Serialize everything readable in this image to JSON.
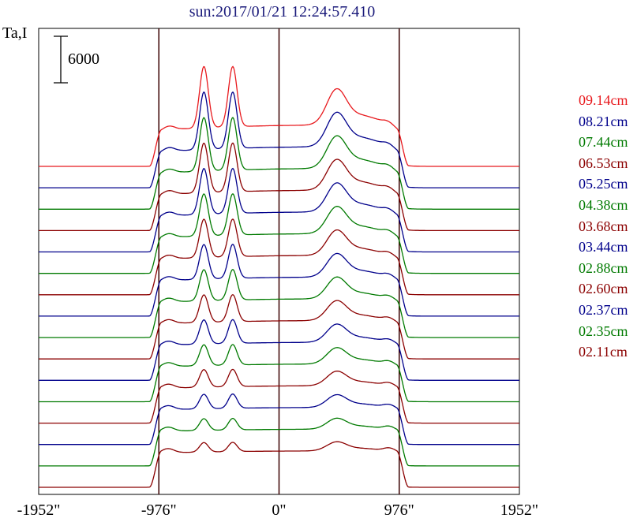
{
  "title": "sun:2017/01/21 12:24:57.410",
  "ylabel": "Ta,I",
  "scale_bar_label": "6000",
  "chart_data": {
    "type": "line",
    "title": "sun:2017/01/21 12:24:57.410",
    "ylabel": "Ta,I",
    "xlabel": "",
    "x_ticks": [
      "-1952\"",
      "-976\"",
      "0\"",
      "976\"",
      "1952\""
    ],
    "x_tick_values": [
      -1952,
      -976,
      0,
      976,
      1952
    ],
    "xlim": [
      -1952,
      1952
    ],
    "scale_bar": 6000,
    "vertical_lines": [
      -976,
      0,
      976
    ],
    "grid": false,
    "legend_position": "right",
    "series": [
      {
        "name": "09.14cm",
        "color": "#e8191d"
      },
      {
        "name": "08.21cm",
        "color": "#00008b"
      },
      {
        "name": "07.44cm",
        "color": "#007a00"
      },
      {
        "name": "06.53cm",
        "color": "#8b0000"
      },
      {
        "name": "05.25cm",
        "color": "#00008b"
      },
      {
        "name": "04.38cm",
        "color": "#007a00"
      },
      {
        "name": "03.68cm",
        "color": "#8b0000"
      },
      {
        "name": "03.44cm",
        "color": "#00008b"
      },
      {
        "name": "02.88cm",
        "color": "#007a00"
      },
      {
        "name": "02.60cm",
        "color": "#8b0000"
      },
      {
        "name": "02.37cm",
        "color": "#00008b"
      },
      {
        "name": "02.35cm",
        "color": "#007a00"
      },
      {
        "name": "02.11cm",
        "color": "#8b0000"
      }
    ],
    "extra_traces": [
      {
        "color": "#00008b"
      },
      {
        "color": "#007a00"
      },
      {
        "color": "#8b0000"
      }
    ]
  }
}
